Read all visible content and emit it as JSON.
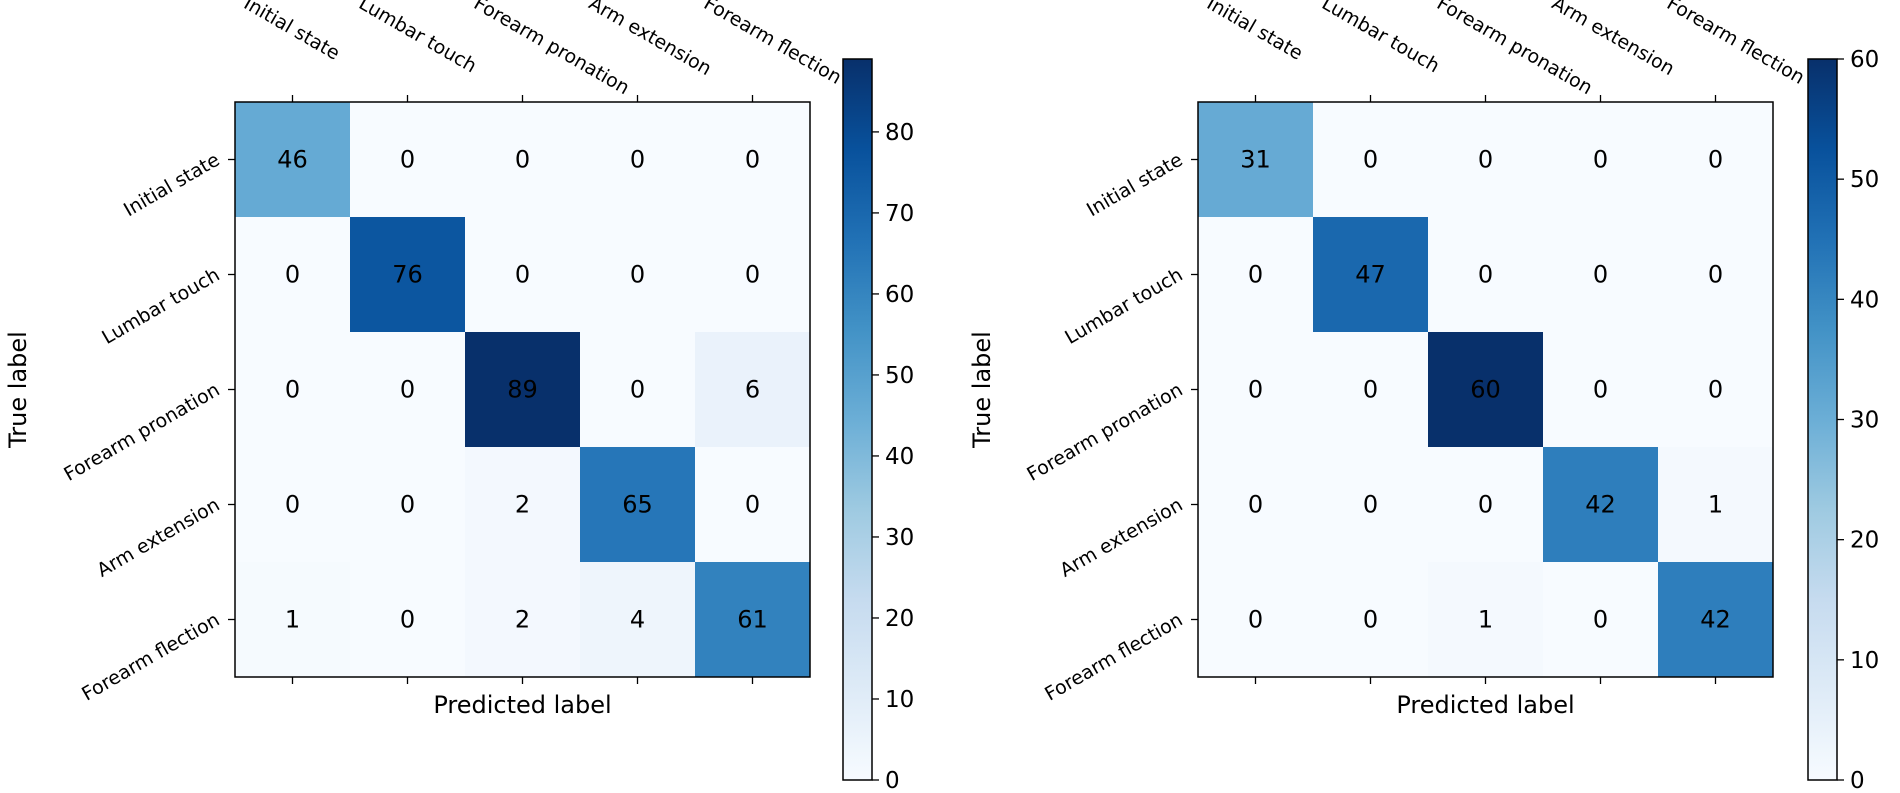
{
  "chart_data": [
    {
      "type": "heatmap",
      "title": "",
      "xlabel": "Predicted label",
      "ylabel": "True label",
      "x_categories": [
        "Initial state",
        "Lumbar touch",
        "Forearm pronation",
        "Arm extension",
        "Forearm flection"
      ],
      "y_categories": [
        "Initial state",
        "Lumbar touch",
        "Forearm pronation",
        "Arm extension",
        "Forearm flection"
      ],
      "values": [
        [
          46,
          0,
          0,
          0,
          0
        ],
        [
          0,
          76,
          0,
          0,
          0
        ],
        [
          0,
          0,
          89,
          0,
          6
        ],
        [
          0,
          0,
          2,
          65,
          0
        ],
        [
          1,
          0,
          2,
          4,
          61
        ]
      ],
      "colormap": "Blues",
      "colorbar": {
        "min": 0,
        "max": 89,
        "ticks": [
          0,
          10,
          20,
          30,
          40,
          50,
          60,
          70,
          80
        ],
        "tick_labels": [
          "0",
          "10",
          "20",
          "30",
          "40",
          "50",
          "60",
          "70",
          "80"
        ]
      }
    },
    {
      "type": "heatmap",
      "title": "",
      "xlabel": "Predicted label",
      "ylabel": "True label",
      "x_categories": [
        "Initial state",
        "Lumbar touch",
        "Forearm pronation",
        "Arm extension",
        "Forearm flection"
      ],
      "y_categories": [
        "Initial state",
        "Lumbar touch",
        "Forearm pronation",
        "Arm extension",
        "Forearm flection"
      ],
      "values": [
        [
          31,
          0,
          0,
          0,
          0
        ],
        [
          0,
          47,
          0,
          0,
          0
        ],
        [
          0,
          0,
          60,
          0,
          0
        ],
        [
          0,
          0,
          0,
          42,
          1
        ],
        [
          0,
          0,
          1,
          0,
          42
        ]
      ],
      "colormap": "Blues",
      "colorbar": {
        "min": 0,
        "max": 60,
        "ticks": [
          0,
          10,
          20,
          30,
          40,
          50,
          60
        ],
        "tick_labels": [
          "0",
          "10",
          "20",
          "30",
          "40",
          "50",
          "60"
        ]
      }
    }
  ],
  "colors": {
    "blues": [
      "#f7fbff",
      "#deebf7",
      "#c6dbef",
      "#9ecae1",
      "#6baed6",
      "#4292c6",
      "#2171b5",
      "#08519c",
      "#08306b"
    ],
    "text": "#000000"
  }
}
